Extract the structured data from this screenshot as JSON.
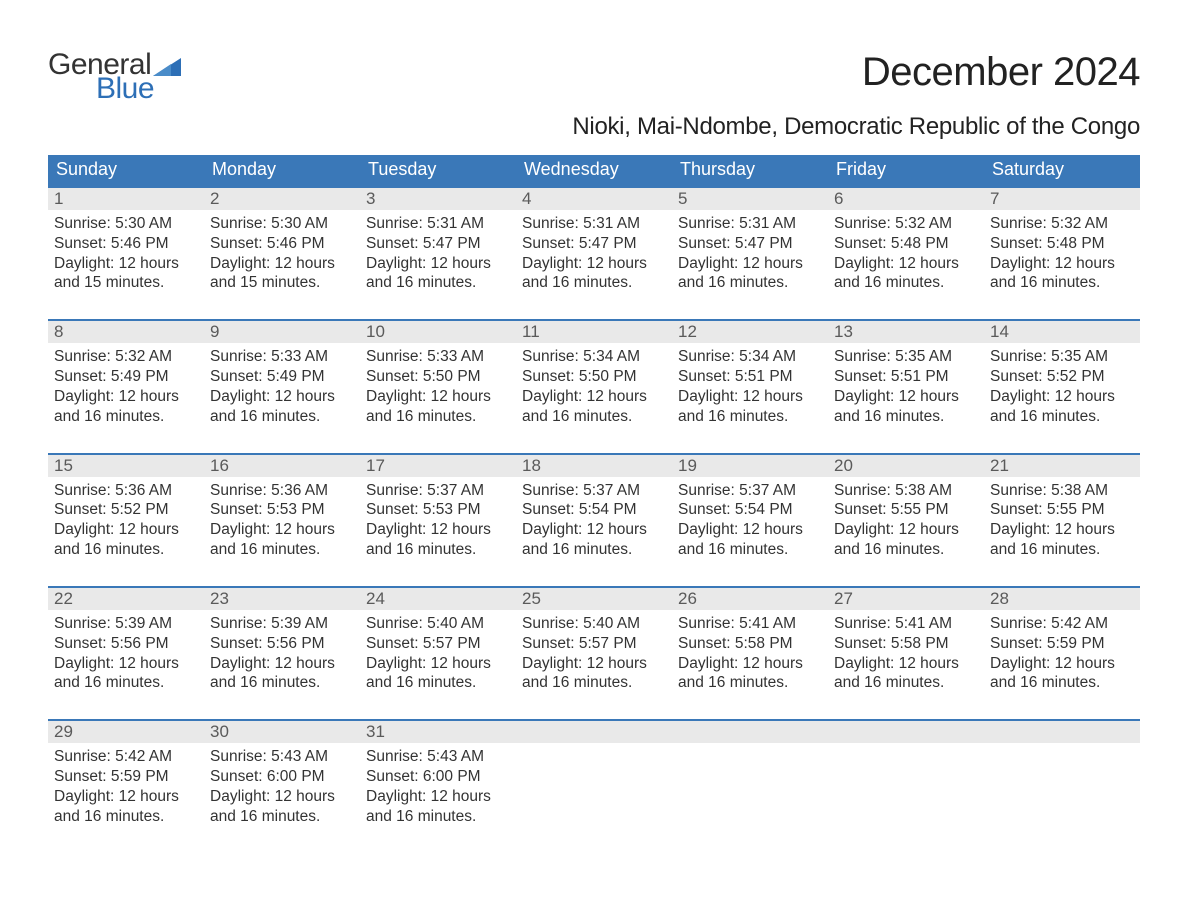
{
  "logo": {
    "text_general": "General",
    "text_blue": "Blue",
    "flag_color": "#2d6fb6"
  },
  "title": "December 2024",
  "location": "Nioki, Mai-Ndombe, Democratic Republic of the Congo",
  "colors": {
    "header_bg": "#3a78b8",
    "header_text": "#ffffff",
    "daynum_bg": "#e9e9e9",
    "daynum_text": "#5a5a5a",
    "body_text": "#333333",
    "week_border": "#3a78b8",
    "logo_blue": "#2d6fb6",
    "background": "#ffffff"
  },
  "fonts": {
    "title_size_pt": 30,
    "location_size_pt": 18,
    "weekday_size_pt": 14,
    "daynum_size_pt": 13,
    "body_size_pt": 12,
    "family": "Arial"
  },
  "weekdays": [
    "Sunday",
    "Monday",
    "Tuesday",
    "Wednesday",
    "Thursday",
    "Friday",
    "Saturday"
  ],
  "weeks": [
    [
      {
        "n": "1",
        "sr": "Sunrise: 5:30 AM",
        "ss": "Sunset: 5:46 PM",
        "d1": "Daylight: 12 hours",
        "d2": "and 15 minutes."
      },
      {
        "n": "2",
        "sr": "Sunrise: 5:30 AM",
        "ss": "Sunset: 5:46 PM",
        "d1": "Daylight: 12 hours",
        "d2": "and 15 minutes."
      },
      {
        "n": "3",
        "sr": "Sunrise: 5:31 AM",
        "ss": "Sunset: 5:47 PM",
        "d1": "Daylight: 12 hours",
        "d2": "and 16 minutes."
      },
      {
        "n": "4",
        "sr": "Sunrise: 5:31 AM",
        "ss": "Sunset: 5:47 PM",
        "d1": "Daylight: 12 hours",
        "d2": "and 16 minutes."
      },
      {
        "n": "5",
        "sr": "Sunrise: 5:31 AM",
        "ss": "Sunset: 5:47 PM",
        "d1": "Daylight: 12 hours",
        "d2": "and 16 minutes."
      },
      {
        "n": "6",
        "sr": "Sunrise: 5:32 AM",
        "ss": "Sunset: 5:48 PM",
        "d1": "Daylight: 12 hours",
        "d2": "and 16 minutes."
      },
      {
        "n": "7",
        "sr": "Sunrise: 5:32 AM",
        "ss": "Sunset: 5:48 PM",
        "d1": "Daylight: 12 hours",
        "d2": "and 16 minutes."
      }
    ],
    [
      {
        "n": "8",
        "sr": "Sunrise: 5:32 AM",
        "ss": "Sunset: 5:49 PM",
        "d1": "Daylight: 12 hours",
        "d2": "and 16 minutes."
      },
      {
        "n": "9",
        "sr": "Sunrise: 5:33 AM",
        "ss": "Sunset: 5:49 PM",
        "d1": "Daylight: 12 hours",
        "d2": "and 16 minutes."
      },
      {
        "n": "10",
        "sr": "Sunrise: 5:33 AM",
        "ss": "Sunset: 5:50 PM",
        "d1": "Daylight: 12 hours",
        "d2": "and 16 minutes."
      },
      {
        "n": "11",
        "sr": "Sunrise: 5:34 AM",
        "ss": "Sunset: 5:50 PM",
        "d1": "Daylight: 12 hours",
        "d2": "and 16 minutes."
      },
      {
        "n": "12",
        "sr": "Sunrise: 5:34 AM",
        "ss": "Sunset: 5:51 PM",
        "d1": "Daylight: 12 hours",
        "d2": "and 16 minutes."
      },
      {
        "n": "13",
        "sr": "Sunrise: 5:35 AM",
        "ss": "Sunset: 5:51 PM",
        "d1": "Daylight: 12 hours",
        "d2": "and 16 minutes."
      },
      {
        "n": "14",
        "sr": "Sunrise: 5:35 AM",
        "ss": "Sunset: 5:52 PM",
        "d1": "Daylight: 12 hours",
        "d2": "and 16 minutes."
      }
    ],
    [
      {
        "n": "15",
        "sr": "Sunrise: 5:36 AM",
        "ss": "Sunset: 5:52 PM",
        "d1": "Daylight: 12 hours",
        "d2": "and 16 minutes."
      },
      {
        "n": "16",
        "sr": "Sunrise: 5:36 AM",
        "ss": "Sunset: 5:53 PM",
        "d1": "Daylight: 12 hours",
        "d2": "and 16 minutes."
      },
      {
        "n": "17",
        "sr": "Sunrise: 5:37 AM",
        "ss": "Sunset: 5:53 PM",
        "d1": "Daylight: 12 hours",
        "d2": "and 16 minutes."
      },
      {
        "n": "18",
        "sr": "Sunrise: 5:37 AM",
        "ss": "Sunset: 5:54 PM",
        "d1": "Daylight: 12 hours",
        "d2": "and 16 minutes."
      },
      {
        "n": "19",
        "sr": "Sunrise: 5:37 AM",
        "ss": "Sunset: 5:54 PM",
        "d1": "Daylight: 12 hours",
        "d2": "and 16 minutes."
      },
      {
        "n": "20",
        "sr": "Sunrise: 5:38 AM",
        "ss": "Sunset: 5:55 PM",
        "d1": "Daylight: 12 hours",
        "d2": "and 16 minutes."
      },
      {
        "n": "21",
        "sr": "Sunrise: 5:38 AM",
        "ss": "Sunset: 5:55 PM",
        "d1": "Daylight: 12 hours",
        "d2": "and 16 minutes."
      }
    ],
    [
      {
        "n": "22",
        "sr": "Sunrise: 5:39 AM",
        "ss": "Sunset: 5:56 PM",
        "d1": "Daylight: 12 hours",
        "d2": "and 16 minutes."
      },
      {
        "n": "23",
        "sr": "Sunrise: 5:39 AM",
        "ss": "Sunset: 5:56 PM",
        "d1": "Daylight: 12 hours",
        "d2": "and 16 minutes."
      },
      {
        "n": "24",
        "sr": "Sunrise: 5:40 AM",
        "ss": "Sunset: 5:57 PM",
        "d1": "Daylight: 12 hours",
        "d2": "and 16 minutes."
      },
      {
        "n": "25",
        "sr": "Sunrise: 5:40 AM",
        "ss": "Sunset: 5:57 PM",
        "d1": "Daylight: 12 hours",
        "d2": "and 16 minutes."
      },
      {
        "n": "26",
        "sr": "Sunrise: 5:41 AM",
        "ss": "Sunset: 5:58 PM",
        "d1": "Daylight: 12 hours",
        "d2": "and 16 minutes."
      },
      {
        "n": "27",
        "sr": "Sunrise: 5:41 AM",
        "ss": "Sunset: 5:58 PM",
        "d1": "Daylight: 12 hours",
        "d2": "and 16 minutes."
      },
      {
        "n": "28",
        "sr": "Sunrise: 5:42 AM",
        "ss": "Sunset: 5:59 PM",
        "d1": "Daylight: 12 hours",
        "d2": "and 16 minutes."
      }
    ],
    [
      {
        "n": "29",
        "sr": "Sunrise: 5:42 AM",
        "ss": "Sunset: 5:59 PM",
        "d1": "Daylight: 12 hours",
        "d2": "and 16 minutes."
      },
      {
        "n": "30",
        "sr": "Sunrise: 5:43 AM",
        "ss": "Sunset: 6:00 PM",
        "d1": "Daylight: 12 hours",
        "d2": "and 16 minutes."
      },
      {
        "n": "31",
        "sr": "Sunrise: 5:43 AM",
        "ss": "Sunset: 6:00 PM",
        "d1": "Daylight: 12 hours",
        "d2": "and 16 minutes."
      },
      {
        "empty": true
      },
      {
        "empty": true
      },
      {
        "empty": true
      },
      {
        "empty": true
      }
    ]
  ]
}
